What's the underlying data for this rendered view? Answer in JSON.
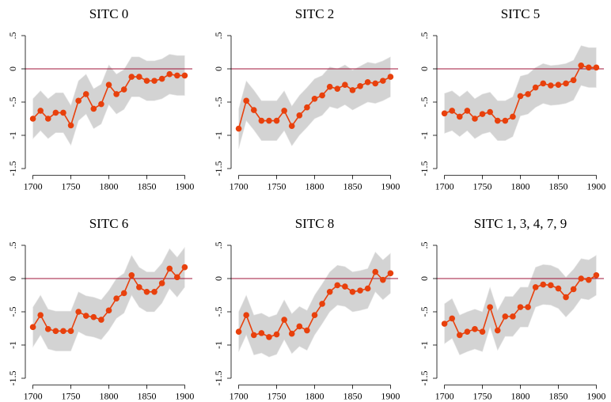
{
  "chart_data": [
    {
      "type": "line",
      "title": "SITC 0",
      "x": [
        1700,
        1710,
        1720,
        1730,
        1740,
        1750,
        1760,
        1770,
        1780,
        1790,
        1800,
        1810,
        1820,
        1830,
        1840,
        1850,
        1860,
        1870,
        1880,
        1890,
        1900
      ],
      "values": [
        -0.75,
        -0.63,
        -0.75,
        -0.66,
        -0.66,
        -0.85,
        -0.48,
        -0.38,
        -0.6,
        -0.53,
        -0.24,
        -0.38,
        -0.31,
        -0.12,
        -0.12,
        -0.18,
        -0.18,
        -0.15,
        -0.08,
        -0.1,
        -0.1
      ],
      "lower": [
        -1.05,
        -0.93,
        -1.05,
        -0.96,
        -0.96,
        -1.15,
        -0.78,
        -0.68,
        -0.9,
        -0.83,
        -0.54,
        -0.68,
        -0.61,
        -0.42,
        -0.42,
        -0.48,
        -0.48,
        -0.45,
        -0.38,
        -0.4,
        -0.4
      ],
      "upper": [
        -0.45,
        -0.33,
        -0.45,
        -0.36,
        -0.36,
        -0.55,
        -0.18,
        -0.08,
        -0.3,
        -0.23,
        0.06,
        -0.08,
        -0.01,
        0.18,
        0.18,
        0.12,
        0.12,
        0.15,
        0.22,
        0.2,
        0.2
      ],
      "color": "#e8400c",
      "band_color": "#d3d3d3",
      "reference_line": {
        "value": 0,
        "color": "#a0163a"
      },
      "xlim": [
        1690,
        1910
      ],
      "xticks": [
        1700,
        1750,
        1800,
        1850,
        1900
      ],
      "ylim": [
        -1.6,
        0.6
      ],
      "yticks": [
        -1.5,
        -1,
        {
          "value": -0.5,
          "label": "-.5"
        },
        0,
        {
          "value": 0.5,
          "label": ".5"
        }
      ]
    },
    {
      "type": "line",
      "title": "SITC 2",
      "x": [
        1700,
        1710,
        1720,
        1730,
        1740,
        1750,
        1760,
        1770,
        1780,
        1790,
        1800,
        1810,
        1820,
        1830,
        1840,
        1850,
        1860,
        1870,
        1880,
        1890,
        1900
      ],
      "values": [
        -0.9,
        -0.48,
        -0.62,
        -0.78,
        -0.78,
        -0.78,
        -0.63,
        -0.86,
        -0.7,
        -0.58,
        -0.45,
        -0.4,
        -0.27,
        -0.3,
        -0.24,
        -0.32,
        -0.26,
        -0.2,
        -0.22,
        -0.18,
        -0.12
      ],
      "lower": [
        -1.2,
        -0.78,
        -0.92,
        -1.08,
        -1.08,
        -1.08,
        -0.93,
        -1.16,
        -1,
        -0.88,
        -0.75,
        -0.7,
        -0.57,
        -0.6,
        -0.54,
        -0.62,
        -0.56,
        -0.5,
        -0.52,
        -0.48,
        -0.42
      ],
      "upper": [
        -0.6,
        -0.18,
        -0.32,
        -0.48,
        -0.48,
        -0.48,
        -0.33,
        -0.56,
        -0.4,
        -0.28,
        -0.15,
        -0.1,
        0.03,
        0,
        0.06,
        -0.02,
        0.04,
        0.1,
        0.08,
        0.12,
        0.18
      ],
      "color": "#e8400c",
      "band_color": "#d3d3d3",
      "reference_line": {
        "value": 0,
        "color": "#a0163a"
      },
      "xlim": [
        1690,
        1910
      ],
      "xticks": [
        1700,
        1750,
        1800,
        1850,
        1900
      ],
      "ylim": [
        -1.6,
        0.6
      ],
      "yticks": [
        -1.5,
        -1,
        {
          "value": -0.5,
          "label": "-.5"
        },
        0,
        {
          "value": 0.5,
          "label": ".5"
        }
      ]
    },
    {
      "type": "line",
      "title": "SITC 5",
      "x": [
        1700,
        1710,
        1720,
        1730,
        1740,
        1750,
        1760,
        1770,
        1780,
        1790,
        1800,
        1810,
        1820,
        1830,
        1840,
        1850,
        1860,
        1870,
        1880,
        1890,
        1900
      ],
      "values": [
        -0.67,
        -0.63,
        -0.72,
        -0.63,
        -0.75,
        -0.68,
        -0.65,
        -0.78,
        -0.78,
        -0.72,
        -0.41,
        -0.38,
        -0.28,
        -0.22,
        -0.25,
        -0.24,
        -0.22,
        -0.17,
        0.05,
        0.02,
        0.02
      ],
      "lower": [
        -0.97,
        -0.93,
        -1.02,
        -0.93,
        -1.05,
        -0.98,
        -0.95,
        -1.08,
        -1.08,
        -1.02,
        -0.71,
        -0.68,
        -0.58,
        -0.52,
        -0.55,
        -0.54,
        -0.52,
        -0.47,
        -0.25,
        -0.28,
        -0.28
      ],
      "upper": [
        -0.37,
        -0.33,
        -0.42,
        -0.33,
        -0.45,
        -0.38,
        -0.35,
        -0.48,
        -0.48,
        -0.42,
        -0.11,
        -0.08,
        0.02,
        0.08,
        0.05,
        0.06,
        0.08,
        0.13,
        0.35,
        0.32,
        0.32
      ],
      "color": "#e8400c",
      "band_color": "#d3d3d3",
      "reference_line": {
        "value": 0,
        "color": "#a0163a"
      },
      "xlim": [
        1690,
        1910
      ],
      "xticks": [
        1700,
        1750,
        1800,
        1850,
        1900
      ],
      "ylim": [
        -1.6,
        0.6
      ],
      "yticks": [
        -1.5,
        -1,
        {
          "value": -0.5,
          "label": "-.5"
        },
        0,
        {
          "value": 0.5,
          "label": ".5"
        }
      ]
    },
    {
      "type": "line",
      "title": "SITC 6",
      "x": [
        1700,
        1710,
        1720,
        1730,
        1740,
        1750,
        1760,
        1770,
        1780,
        1790,
        1800,
        1810,
        1820,
        1830,
        1840,
        1850,
        1860,
        1870,
        1880,
        1890,
        1900
      ],
      "values": [
        -0.73,
        -0.55,
        -0.76,
        -0.79,
        -0.79,
        -0.79,
        -0.5,
        -0.56,
        -0.58,
        -0.62,
        -0.48,
        -0.3,
        -0.22,
        0.05,
        -0.13,
        -0.2,
        -0.2,
        -0.07,
        0.15,
        0.02,
        0.17
      ],
      "lower": [
        -1.03,
        -0.85,
        -1.06,
        -1.09,
        -1.09,
        -1.09,
        -0.8,
        -0.86,
        -0.88,
        -0.92,
        -0.78,
        -0.6,
        -0.52,
        -0.25,
        -0.43,
        -0.5,
        -0.5,
        -0.37,
        -0.15,
        -0.28,
        -0.13
      ],
      "upper": [
        -0.43,
        -0.25,
        -0.46,
        -0.49,
        -0.49,
        -0.49,
        -0.2,
        -0.26,
        -0.28,
        -0.32,
        -0.18,
        0,
        0.08,
        0.35,
        0.17,
        0.1,
        0.1,
        0.23,
        0.45,
        0.32,
        0.47
      ],
      "color": "#e8400c",
      "band_color": "#d3d3d3",
      "reference_line": {
        "value": 0,
        "color": "#a0163a"
      },
      "xlim": [
        1690,
        1910
      ],
      "xticks": [
        1700,
        1750,
        1800,
        1850,
        1900
      ],
      "ylim": [
        -1.6,
        0.6
      ],
      "yticks": [
        -1.5,
        -1,
        {
          "value": -0.5,
          "label": "-.5"
        },
        0,
        {
          "value": 0.5,
          "label": ".5"
        }
      ]
    },
    {
      "type": "line",
      "title": "SITC 8",
      "x": [
        1700,
        1710,
        1720,
        1730,
        1740,
        1750,
        1760,
        1770,
        1780,
        1790,
        1800,
        1810,
        1820,
        1830,
        1840,
        1850,
        1860,
        1870,
        1880,
        1890,
        1900
      ],
      "values": [
        -0.8,
        -0.55,
        -0.85,
        -0.82,
        -0.88,
        -0.84,
        -0.62,
        -0.83,
        -0.72,
        -0.78,
        -0.55,
        -0.38,
        -0.2,
        -0.1,
        -0.12,
        -0.2,
        -0.18,
        -0.15,
        0.1,
        -0.02,
        0.08
      ],
      "lower": [
        -1.1,
        -0.85,
        -1.15,
        -1.12,
        -1.18,
        -1.14,
        -0.92,
        -1.13,
        -1.02,
        -1.08,
        -0.85,
        -0.68,
        -0.5,
        -0.4,
        -0.42,
        -0.5,
        -0.48,
        -0.45,
        -0.2,
        -0.32,
        -0.22
      ],
      "upper": [
        -0.5,
        -0.25,
        -0.55,
        -0.52,
        -0.58,
        -0.54,
        -0.32,
        -0.53,
        -0.42,
        -0.48,
        -0.25,
        -0.08,
        0.1,
        0.2,
        0.18,
        0.1,
        0.12,
        0.15,
        0.4,
        0.28,
        0.38
      ],
      "color": "#e8400c",
      "band_color": "#d3d3d3",
      "reference_line": {
        "value": 0,
        "color": "#a0163a"
      },
      "xlim": [
        1690,
        1910
      ],
      "xticks": [
        1700,
        1750,
        1800,
        1850,
        1900
      ],
      "ylim": [
        -1.6,
        0.6
      ],
      "yticks": [
        -1.5,
        -1,
        {
          "value": -0.5,
          "label": "-.5"
        },
        0,
        {
          "value": 0.5,
          "label": ".5"
        }
      ]
    },
    {
      "type": "line",
      "title": "SITC 1, 3, 4, 7, 9",
      "x": [
        1700,
        1710,
        1720,
        1730,
        1740,
        1750,
        1760,
        1770,
        1780,
        1790,
        1800,
        1810,
        1820,
        1830,
        1840,
        1850,
        1860,
        1870,
        1880,
        1890,
        1900
      ],
      "values": [
        -0.68,
        -0.6,
        -0.85,
        -0.8,
        -0.76,
        -0.8,
        -0.43,
        -0.78,
        -0.57,
        -0.57,
        -0.43,
        -0.43,
        -0.13,
        -0.09,
        -0.1,
        -0.15,
        -0.28,
        -0.16,
        0,
        -0.02,
        0.05
      ],
      "lower": [
        -0.98,
        -0.9,
        -1.15,
        -1.1,
        -1.06,
        -1.1,
        -0.73,
        -1.08,
        -0.87,
        -0.87,
        -0.73,
        -0.73,
        -0.43,
        -0.39,
        -0.4,
        -0.45,
        -0.58,
        -0.46,
        -0.3,
        -0.32,
        -0.25
      ],
      "upper": [
        -0.38,
        -0.3,
        -0.55,
        -0.5,
        -0.46,
        -0.5,
        -0.13,
        -0.48,
        -0.27,
        -0.27,
        -0.13,
        -0.13,
        0.17,
        0.21,
        0.2,
        0.15,
        0.02,
        0.14,
        0.3,
        0.28,
        0.35
      ],
      "color": "#e8400c",
      "band_color": "#d3d3d3",
      "reference_line": {
        "value": 0,
        "color": "#a0163a"
      },
      "xlim": [
        1690,
        1910
      ],
      "xticks": [
        1700,
        1750,
        1800,
        1850,
        1900
      ],
      "ylim": [
        -1.6,
        0.6
      ],
      "yticks": [
        -1.5,
        -1,
        {
          "value": -0.5,
          "label": "-.5"
        },
        0,
        {
          "value": 0.5,
          "label": ".5"
        }
      ]
    }
  ]
}
